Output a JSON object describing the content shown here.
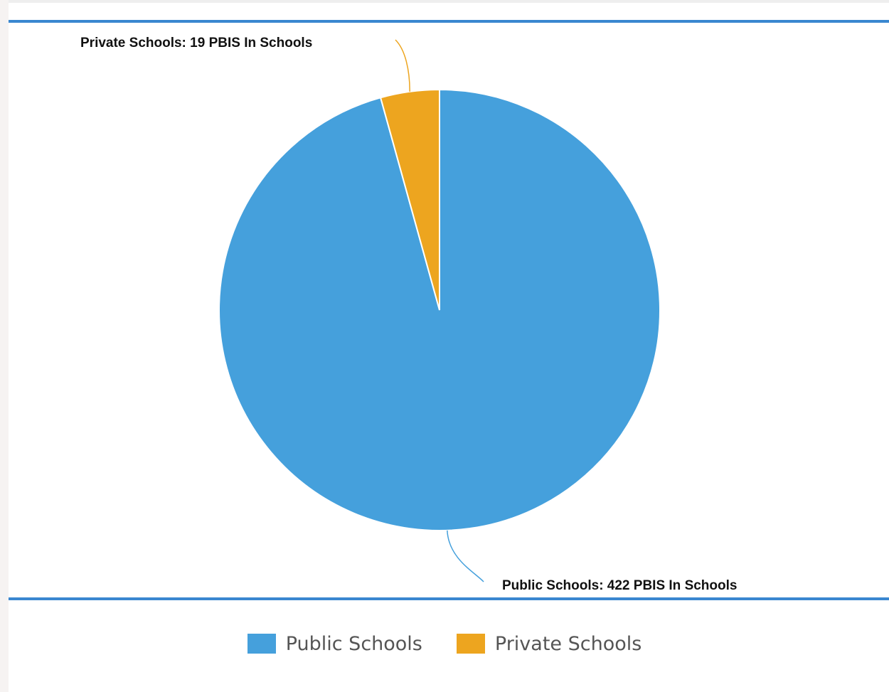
{
  "chart_data": {
    "type": "pie",
    "series": [
      {
        "name": "Public Schools",
        "value": 422,
        "color": "#45a0dc"
      },
      {
        "name": "Private Schools",
        "value": 19,
        "color": "#eda51f"
      }
    ],
    "data_labels": [
      "Public Schools: 422 PBIS In Schools",
      "Private Schools: 19 PBIS In Schools"
    ],
    "legend": {
      "placement": "bottom-center",
      "items": [
        "Public Schools",
        "Private Schools"
      ]
    },
    "start_angle_deg": 0,
    "direction": "counterclockwise"
  },
  "colors": {
    "frame_border": "#3a87d0",
    "background": "#f6f3f2"
  }
}
